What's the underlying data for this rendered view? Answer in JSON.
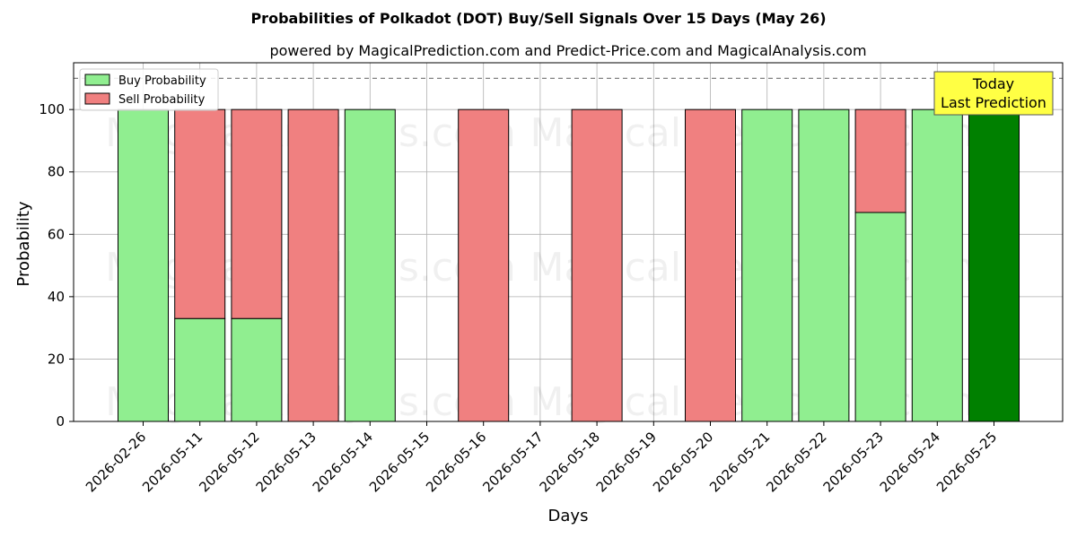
{
  "chart_data": {
    "type": "bar",
    "stacked": true,
    "title": "Probabilities of Polkadot (DOT) Buy/Sell Signals Over 15 Days (May 26)",
    "subtitle": "powered by MagicalPrediction.com and Predict-Price.com and MagicalAnalysis.com",
    "xlabel": "Days",
    "ylabel": "Probability",
    "ylim": [
      0,
      115
    ],
    "yticks": [
      0,
      20,
      40,
      60,
      80,
      100
    ],
    "grid": true,
    "legend_position": "top-left",
    "categories": [
      "2026-02-26",
      "2026-05-11",
      "2026-05-12",
      "2026-05-13",
      "2026-05-14",
      "2026-05-15",
      "2026-05-16",
      "2026-05-17",
      "2026-05-18",
      "2026-05-19",
      "2026-05-20",
      "2026-05-21",
      "2026-05-22",
      "2026-05-23",
      "2026-05-24",
      "2026-05-25"
    ],
    "series": [
      {
        "name": "Buy Probability",
        "color": "#90ee90",
        "values": [
          100,
          33,
          33,
          0,
          100,
          0,
          0,
          0,
          0,
          0,
          0,
          100,
          100,
          67,
          100,
          100
        ]
      },
      {
        "name": "Sell Probability",
        "color": "#f08080",
        "values": [
          0,
          67,
          67,
          100,
          0,
          0,
          100,
          0,
          100,
          0,
          100,
          0,
          0,
          33,
          0,
          0
        ]
      }
    ],
    "highlight": {
      "category": "2026-05-25",
      "color": "#008000"
    },
    "reference_line": {
      "y": 110,
      "style": "dashed",
      "color": "#808080"
    },
    "annotation": {
      "lines": [
        "Today",
        "Last Prediction"
      ],
      "background": "#ffff44"
    },
    "watermarks": [
      "MagicalAnalysis.com",
      "MagicalPrediction.com"
    ]
  }
}
